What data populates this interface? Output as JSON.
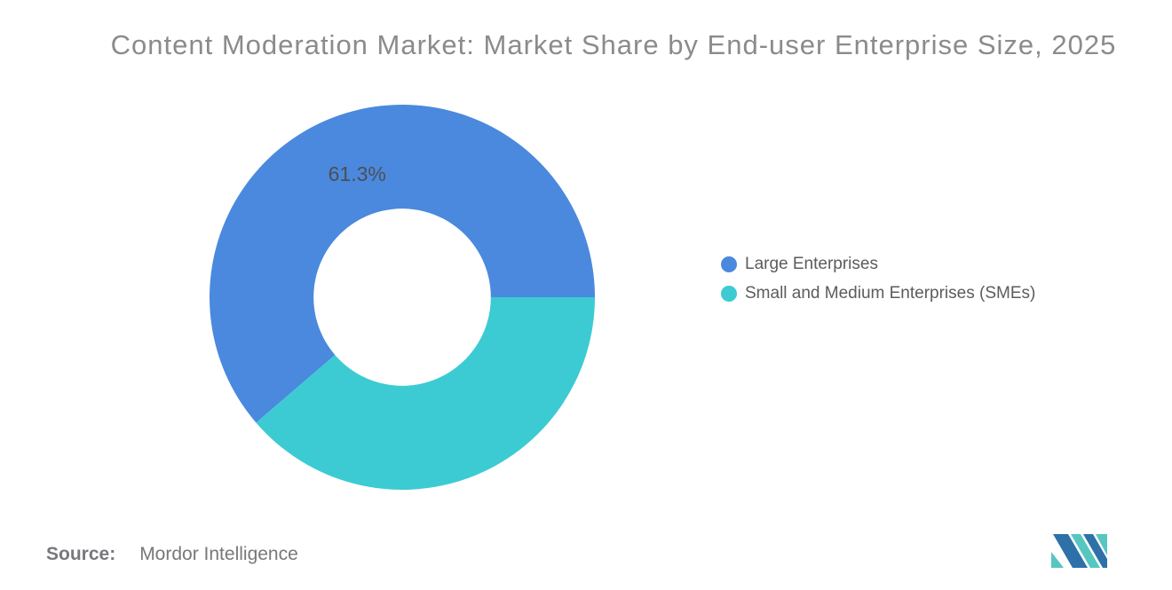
{
  "title": "Content Moderation Market: Market Share by End-user Enterprise Size, 2025",
  "source": {
    "label": "Source:",
    "value": "Mordor Intelligence"
  },
  "colors": {
    "blue": "#4A89DE",
    "teal": "#3CCBD2",
    "title_gray": "#8B8B8B",
    "slice_label_gray": "#4D4F54",
    "legend_gray": "#5C5C5E",
    "source_gray": "#77787B",
    "logo_navy": "#2E71A8",
    "logo_teal": "#56C6C0"
  },
  "legend": {
    "items": [
      {
        "label": "Large Enterprises",
        "color": "#4A89DE"
      },
      {
        "label": "Small and Medium Enterprises (SMEs)",
        "color": "#3CCBD2"
      }
    ]
  },
  "chart_data": {
    "type": "pie",
    "donut": true,
    "title": "Content Moderation Market: Market Share by End-user Enterprise Size, 2025",
    "series": [
      {
        "name": "Large Enterprises",
        "value": 61.3,
        "label": "61.3%",
        "color": "#4A89DE"
      },
      {
        "name": "Small and Medium Enterprises (SMEs)",
        "value": 38.7,
        "label": null,
        "color": "#3CCBD2"
      }
    ],
    "units": "percent",
    "total": 100,
    "start_angle_deg": 0,
    "direction": "counterclockwise",
    "inner_radius_ratio": 0.46,
    "label_radius_ratio": 0.673,
    "legend_position": "right"
  },
  "logo": {
    "name": "Mordor Intelligence logo"
  }
}
